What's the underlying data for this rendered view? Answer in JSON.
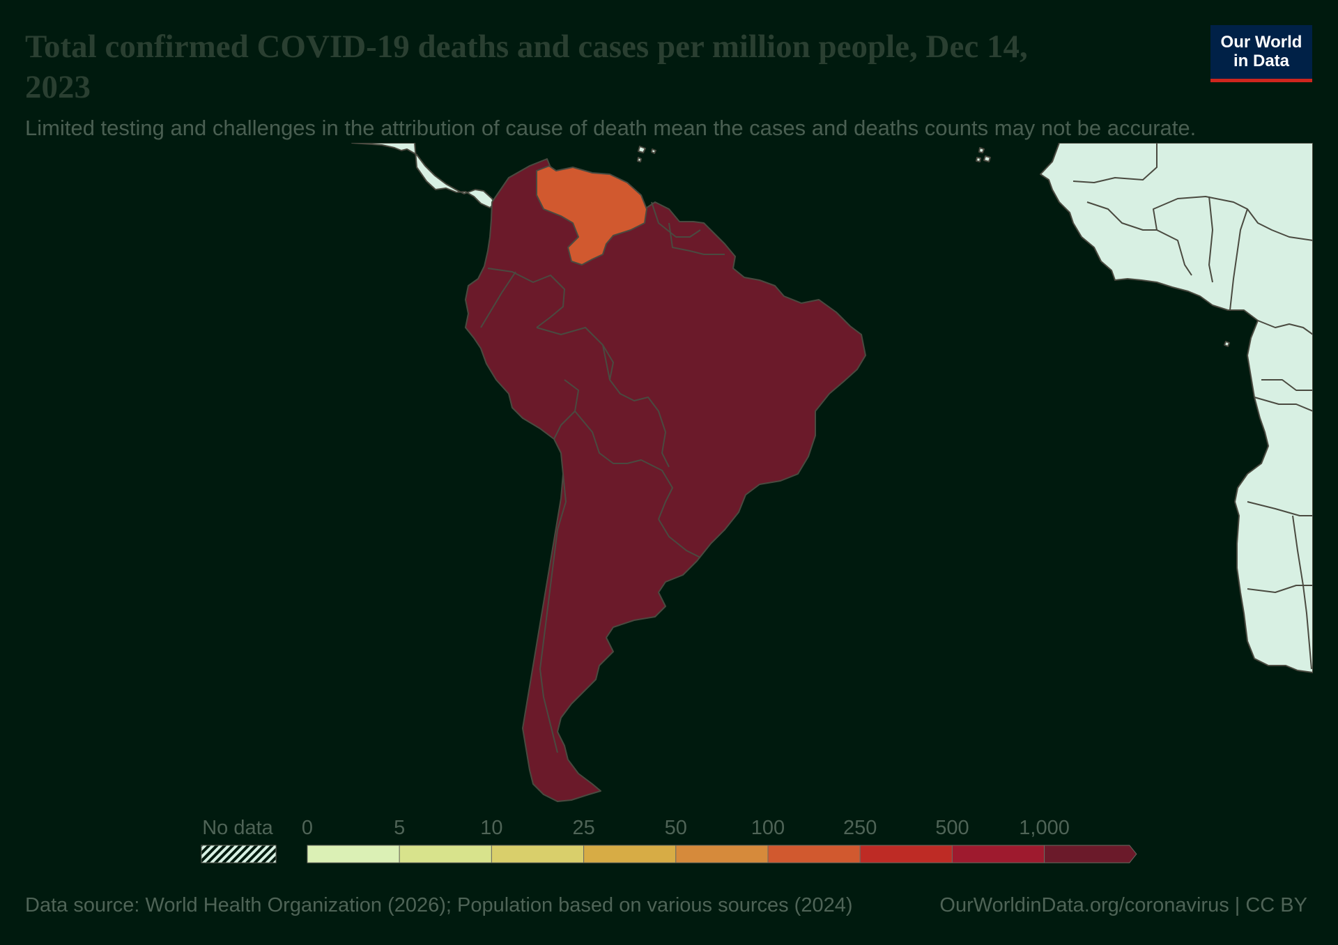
{
  "header": {
    "title": "Total confirmed COVID-19 deaths and cases per million people, Dec 14, 2023",
    "subtitle": "Limited testing and challenges in the attribution of cause of death mean the cases and deaths counts may not be accurate.",
    "logo_line1": "Our World",
    "logo_line2": "in Data"
  },
  "legend": {
    "no_data_label": "No data",
    "bins": [
      {
        "label": "0",
        "color": "#dbf0b5"
      },
      {
        "label": "5",
        "color": "#d8e38c"
      },
      {
        "label": "10",
        "color": "#d9cf6b"
      },
      {
        "label": "25",
        "color": "#d7ac45"
      },
      {
        "label": "50",
        "color": "#d68a3b"
      },
      {
        "label": "100",
        "color": "#d1592f"
      },
      {
        "label": "250",
        "color": "#be2b25"
      },
      {
        "label": "500",
        "color": "#9e1a2e"
      },
      {
        "label": "1,000",
        "color": "#6b1a2a"
      }
    ]
  },
  "map_colors": {
    "highest_bin": "#6b1a2a",
    "venezuela": "#d1592f",
    "no_data_land": "#d8f0e3",
    "background": "#001a0e",
    "borders": "#4a4a40"
  },
  "map_regions": [
    {
      "name": "Venezuela",
      "bin": "100"
    },
    {
      "name": "South America (other countries)",
      "bin": "1,000"
    },
    {
      "name": "Central America",
      "bin": "No data"
    },
    {
      "name": "West Africa",
      "bin": "No data"
    }
  ],
  "footer": {
    "source": "Data source: World Health Organization (2026); Population based on various sources (2024)",
    "url": "OurWorldinData.org/coronavirus",
    "separator": " | ",
    "license": "CC BY"
  }
}
